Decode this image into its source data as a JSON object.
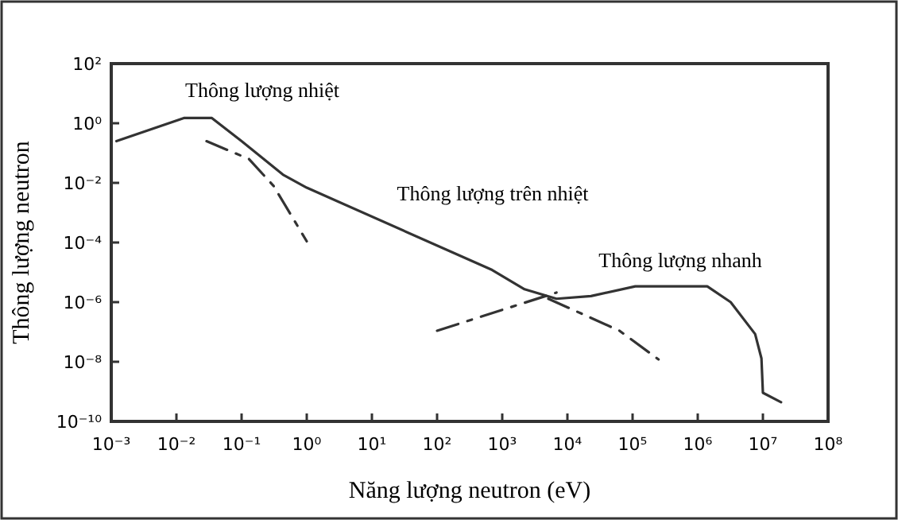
{
  "chart_data": {
    "type": "line",
    "xlabel": "Năng lượng neutron (eV)",
    "ylabel": "Thông lượng neutron",
    "log": "xy",
    "grid": false,
    "xlim": [
      0.001,
      100000000
    ],
    "ylim": [
      1e-10,
      100
    ],
    "xticks": [
      {
        "value": 0.001,
        "label": "10⁻³"
      },
      {
        "value": 0.01,
        "label": "10⁻²"
      },
      {
        "value": 0.1,
        "label": "10⁻¹"
      },
      {
        "value": 1,
        "label": "10⁰"
      },
      {
        "value": 10,
        "label": "10¹"
      },
      {
        "value": 100,
        "label": "10²"
      },
      {
        "value": 1000,
        "label": "10³"
      },
      {
        "value": 10000,
        "label": "10⁴"
      },
      {
        "value": 100000,
        "label": "10⁵"
      },
      {
        "value": 1000000,
        "label": "10⁶"
      },
      {
        "value": 10000000,
        "label": "10⁷"
      },
      {
        "value": 100000000,
        "label": "10⁸"
      }
    ],
    "yticks": [
      {
        "value": 1e-10,
        "label": "10⁻¹⁰"
      },
      {
        "value": 1e-08,
        "label": "10⁻⁸"
      },
      {
        "value": 1e-06,
        "label": "10⁻⁶"
      },
      {
        "value": 0.0001,
        "label": "10⁻⁴"
      },
      {
        "value": 0.01,
        "label": "10⁻²"
      },
      {
        "value": 1,
        "label": "10⁰"
      },
      {
        "value": 100,
        "label": "10²"
      }
    ],
    "series": [
      {
        "color": "#333333",
        "line_style": "solid",
        "x": [
          0.0012,
          0.013,
          0.035,
          0.1,
          0.43,
          1,
          700,
          2200,
          6800,
          23000,
          110000,
          600000,
          1400000,
          3200000,
          7600000,
          9500000,
          10000000,
          19000000
        ],
        "values": [
          0.25,
          1.5,
          1.5,
          0.25,
          0.019,
          0.0069,
          1.2e-05,
          2.7e-06,
          1.3e-06,
          1.6e-06,
          3.4e-06,
          3.4e-06,
          3.4e-06,
          1e-06,
          8.5e-08,
          1.3e-08,
          9.1e-10,
          4.4e-10
        ]
      },
      {
        "color": "#333333",
        "line_style": "dashed",
        "x": [
          0.029,
          0.13,
          0.31,
          1
        ],
        "values": [
          0.25,
          0.063,
          0.0079,
          0.00011
        ]
      },
      {
        "color": "#333333",
        "line_style": "dashed",
        "x": [
          5100,
          63000,
          250000
        ],
        "values": [
          1.3e-06,
          1.1e-07,
          1.2e-08
        ]
      },
      {
        "color": "#333333",
        "line_style": "dashed",
        "x": [
          100,
          6800
        ],
        "values": [
          1.1e-07,
          2.1e-06
        ]
      }
    ],
    "annotations": [
      "Thông lượng nhiệt",
      "Thông lượng trên nhiệt",
      "Thông lượng nhanh"
    ]
  }
}
